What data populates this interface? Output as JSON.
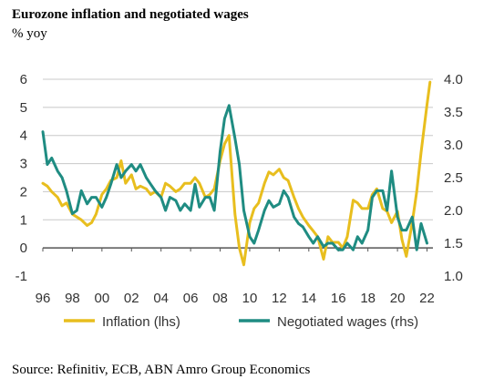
{
  "title": "Eurozone inflation and negotiated wages",
  "subtitle": "% yoy",
  "source": "Source: Refinitiv, ECB, ABN Amro Group Economics",
  "chart_data": {
    "type": "line",
    "x_ticks": [
      "96",
      "98",
      "00",
      "02",
      "04",
      "06",
      "08",
      "10",
      "12",
      "14",
      "16",
      "18",
      "20",
      "22"
    ],
    "y_left_ticks": [
      "6",
      "5",
      "4",
      "3",
      "2",
      "1",
      "0",
      "-1"
    ],
    "y_right_ticks": [
      "4.0",
      "3.5",
      "3.0",
      "2.5",
      "2.0",
      "1.5",
      "1.0"
    ],
    "y_left_range": [
      -1,
      6
    ],
    "y_right_range": [
      1.0,
      4.0
    ],
    "x_range": [
      1996,
      2022.4
    ],
    "grid": "horizontal",
    "legend_position": "bottom",
    "series": [
      {
        "name": "Inflation (lhs)",
        "axis": "left",
        "color": "#E8BE1E",
        "x": [
          1996.0,
          1996.3,
          1996.6,
          1997.0,
          1997.3,
          1997.6,
          1998.0,
          1998.3,
          1998.6,
          1999.0,
          1999.3,
          1999.6,
          2000.0,
          2000.3,
          2000.6,
          2001.0,
          2001.3,
          2001.6,
          2002.0,
          2002.3,
          2002.6,
          2003.0,
          2003.3,
          2003.6,
          2004.0,
          2004.3,
          2004.6,
          2005.0,
          2005.3,
          2005.6,
          2006.0,
          2006.3,
          2006.6,
          2007.0,
          2007.3,
          2007.6,
          2008.0,
          2008.3,
          2008.6,
          2009.0,
          2009.3,
          2009.6,
          2010.0,
          2010.3,
          2010.6,
          2011.0,
          2011.3,
          2011.6,
          2012.0,
          2012.3,
          2012.6,
          2013.0,
          2013.3,
          2013.6,
          2014.0,
          2014.3,
          2014.6,
          2015.0,
          2015.3,
          2015.6,
          2016.0,
          2016.3,
          2016.6,
          2017.0,
          2017.3,
          2017.6,
          2018.0,
          2018.3,
          2018.6,
          2019.0,
          2019.3,
          2019.6,
          2020.0,
          2020.3,
          2020.6,
          2021.0,
          2021.3,
          2021.6,
          2022.0,
          2022.2
        ],
        "values": [
          2.3,
          2.2,
          2.0,
          1.8,
          1.5,
          1.6,
          1.2,
          1.1,
          1.0,
          0.8,
          0.9,
          1.2,
          1.9,
          2.1,
          2.4,
          2.5,
          3.1,
          2.3,
          2.6,
          2.1,
          2.2,
          2.1,
          1.9,
          2.0,
          1.8,
          2.3,
          2.2,
          2.0,
          2.1,
          2.3,
          2.3,
          2.5,
          2.3,
          1.8,
          1.9,
          2.1,
          3.1,
          3.7,
          4.0,
          1.2,
          0.0,
          -0.6,
          0.9,
          1.4,
          1.6,
          2.3,
          2.7,
          2.6,
          2.8,
          2.5,
          2.4,
          1.8,
          1.4,
          1.1,
          0.8,
          0.6,
          0.4,
          -0.4,
          0.4,
          0.2,
          0.2,
          0.0,
          0.4,
          1.7,
          1.6,
          1.4,
          1.4,
          1.9,
          2.1,
          1.4,
          1.3,
          0.9,
          1.3,
          0.3,
          -0.3,
          0.9,
          2.0,
          3.4,
          5.1,
          5.9
        ]
      },
      {
        "name": "Negotiated wages (rhs)",
        "axis": "right",
        "color": "#1F8C82",
        "x": [
          1996.0,
          1996.3,
          1996.6,
          1997.0,
          1997.3,
          1997.6,
          1998.0,
          1998.3,
          1998.6,
          1999.0,
          1999.3,
          1999.6,
          2000.0,
          2000.3,
          2000.6,
          2001.0,
          2001.3,
          2001.6,
          2002.0,
          2002.3,
          2002.6,
          2003.0,
          2003.3,
          2003.6,
          2004.0,
          2004.3,
          2004.6,
          2005.0,
          2005.3,
          2005.6,
          2006.0,
          2006.3,
          2006.6,
          2007.0,
          2007.3,
          2007.6,
          2008.0,
          2008.3,
          2008.6,
          2009.0,
          2009.3,
          2009.6,
          2010.0,
          2010.3,
          2010.6,
          2011.0,
          2011.3,
          2011.6,
          2012.0,
          2012.3,
          2012.6,
          2013.0,
          2013.3,
          2013.6,
          2014.0,
          2014.3,
          2014.6,
          2015.0,
          2015.3,
          2015.6,
          2016.0,
          2016.3,
          2016.6,
          2017.0,
          2017.3,
          2017.6,
          2018.0,
          2018.3,
          2018.6,
          2019.0,
          2019.3,
          2019.6,
          2020.0,
          2020.3,
          2020.6,
          2021.0,
          2021.3,
          2021.6,
          2022.0
        ],
        "values": [
          3.2,
          2.7,
          2.8,
          2.6,
          2.5,
          2.3,
          1.95,
          2.0,
          2.3,
          2.1,
          2.2,
          2.2,
          2.05,
          2.2,
          2.4,
          2.7,
          2.5,
          2.6,
          2.7,
          2.6,
          2.7,
          2.5,
          2.4,
          2.3,
          2.2,
          2.0,
          2.2,
          2.15,
          2.0,
          2.1,
          2.0,
          2.4,
          2.05,
          2.2,
          2.2,
          2.0,
          2.9,
          3.4,
          3.6,
          3.1,
          2.7,
          2.0,
          1.6,
          1.5,
          1.7,
          2.0,
          2.15,
          2.05,
          2.1,
          2.3,
          2.2,
          1.9,
          1.8,
          1.75,
          1.6,
          1.5,
          1.6,
          1.45,
          1.5,
          1.5,
          1.4,
          1.4,
          1.5,
          1.4,
          1.6,
          1.5,
          1.7,
          2.2,
          2.3,
          2.3,
          2.0,
          2.6,
          1.9,
          1.7,
          1.7,
          1.9,
          1.4,
          1.8,
          1.5
        ]
      }
    ]
  }
}
